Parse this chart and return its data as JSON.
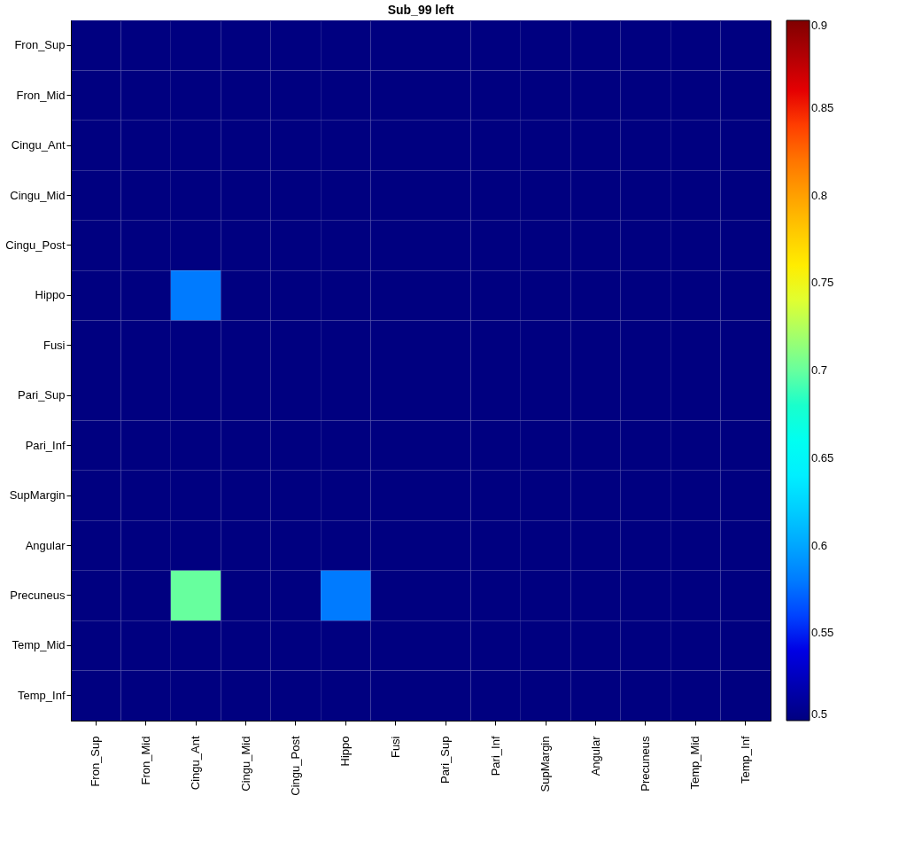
{
  "chart_data": {
    "type": "heatmap",
    "title": "Sub_99 left",
    "categories": [
      "Fron_Sup",
      "Fron_Mid",
      "Cingu_Ant",
      "Cingu_Mid",
      "Cingu_Post",
      "Hippo",
      "Fusi",
      "Pari_Sup",
      "Pari_Inf",
      "SupMargin",
      "Angular",
      "Precuneus",
      "Temp_Mid",
      "Temp_Inf"
    ],
    "y_categories": [
      "Fron_Sup",
      "Fron_Mid",
      "Cingu_Ant",
      "Cingu_Mid",
      "Cingu_Post",
      "Hippo",
      "Fusi",
      "Pari_Sup",
      "Pari_Inf",
      "SupMargin",
      "Angular",
      "Precuneus",
      "Temp_Mid",
      "Temp_Inf"
    ],
    "cells": [
      [
        0.5,
        0.5,
        0.5,
        0.5,
        0.5,
        0.5,
        0.5,
        0.5,
        0.5,
        0.5,
        0.5,
        0.5,
        0.5,
        0.5
      ],
      [
        0.5,
        0.5,
        0.5,
        0.5,
        0.5,
        0.5,
        0.5,
        0.5,
        0.5,
        0.5,
        0.5,
        0.5,
        0.5,
        0.5
      ],
      [
        0.5,
        0.5,
        0.5,
        0.5,
        0.5,
        0.5,
        0.5,
        0.5,
        0.5,
        0.5,
        0.5,
        0.5,
        0.5,
        0.5
      ],
      [
        0.5,
        0.5,
        0.5,
        0.5,
        0.5,
        0.5,
        0.5,
        0.5,
        0.5,
        0.5,
        0.5,
        0.5,
        0.5,
        0.5
      ],
      [
        0.5,
        0.5,
        0.5,
        0.5,
        0.5,
        0.5,
        0.5,
        0.5,
        0.5,
        0.5,
        0.5,
        0.5,
        0.5,
        0.5
      ],
      [
        0.5,
        0.5,
        0.58,
        0.5,
        0.5,
        0.5,
        0.5,
        0.5,
        0.5,
        0.5,
        0.5,
        0.5,
        0.5,
        0.5
      ],
      [
        0.5,
        0.5,
        0.5,
        0.5,
        0.5,
        0.5,
        0.5,
        0.5,
        0.5,
        0.5,
        0.5,
        0.5,
        0.5,
        0.5
      ],
      [
        0.5,
        0.5,
        0.5,
        0.5,
        0.5,
        0.5,
        0.5,
        0.5,
        0.5,
        0.5,
        0.5,
        0.5,
        0.5,
        0.5
      ],
      [
        0.5,
        0.5,
        0.5,
        0.5,
        0.5,
        0.5,
        0.5,
        0.5,
        0.5,
        0.5,
        0.5,
        0.5,
        0.5,
        0.5
      ],
      [
        0.5,
        0.5,
        0.5,
        0.5,
        0.5,
        0.5,
        0.5,
        0.5,
        0.5,
        0.5,
        0.5,
        0.5,
        0.5,
        0.5
      ],
      [
        0.5,
        0.5,
        0.5,
        0.5,
        0.5,
        0.5,
        0.5,
        0.5,
        0.5,
        0.5,
        0.5,
        0.5,
        0.5,
        0.5
      ],
      [
        0.5,
        0.5,
        0.7,
        0.5,
        0.5,
        0.58,
        0.5,
        0.5,
        0.5,
        0.5,
        0.5,
        0.5,
        0.5,
        0.5
      ],
      [
        0.5,
        0.5,
        0.5,
        0.5,
        0.5,
        0.5,
        0.5,
        0.5,
        0.5,
        0.5,
        0.5,
        0.5,
        0.5,
        0.5
      ],
      [
        0.5,
        0.5,
        0.5,
        0.5,
        0.5,
        0.5,
        0.5,
        0.5,
        0.5,
        0.5,
        0.5,
        0.5,
        0.5,
        0.5
      ]
    ],
    "clim": [
      0.5,
      0.9
    ],
    "cticks": [
      0.5,
      0.55,
      0.6,
      0.65,
      0.7,
      0.75,
      0.8,
      0.85,
      0.9
    ]
  }
}
